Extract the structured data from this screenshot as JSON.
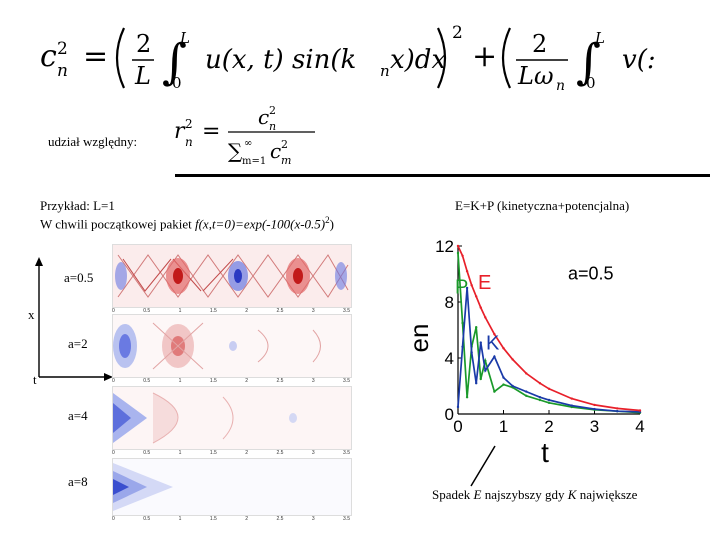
{
  "formula_top": {
    "lhs": "c",
    "lhs_sub": "n",
    "lhs_sup": "2",
    "frac1_num": "2",
    "frac1_den": "L",
    "int_lower": "0",
    "int_upper": "L",
    "integrand1": "u(x, t) sin(k",
    "integrand1_sub": "n",
    "integrand1_end": "x)dx",
    "square": "2",
    "frac2_num": "2",
    "frac2_den": "Lω",
    "frac2_den_sub": "n",
    "integrand2": "v(:"
  },
  "relative_share": {
    "label": "udział względny:",
    "lhs": "r",
    "lhs_sub": "n",
    "lhs_sup": "2",
    "num": "c",
    "num_sub": "n",
    "num_sup": "2",
    "den_sum": "∑",
    "den_sum_upper": "∞",
    "den_sum_lower": "m=1",
    "den": "c",
    "den_sub": "m",
    "den_sup": "2"
  },
  "example": {
    "line1": "Przykład: L=1",
    "line2_prefix": "W chwili początkowej pakiet ",
    "line2_formula": "f(x,t=0)=exp(-100(x-0.5)",
    "line2_sup": "2",
    "line2_end": ")"
  },
  "energy_header": "E=K+P (kinetyczna+potencjalna)",
  "axis_labels": {
    "x": "x",
    "t": "t"
  },
  "panels": [
    {
      "label": "a=0.5",
      "ticks": [
        "0",
        "0.5",
        "1",
        "1.5",
        "2",
        "2.5",
        "3",
        "3.5"
      ]
    },
    {
      "label": "a=2",
      "ticks": [
        "0",
        "0.5",
        "1",
        "1.5",
        "2",
        "2.5",
        "3",
        "3.5"
      ]
    },
    {
      "label": "a=4",
      "ticks": [
        "0",
        "0.5",
        "1",
        "1.5",
        "2",
        "2.5",
        "3",
        "3.5"
      ]
    },
    {
      "label": "a=8",
      "ticks": [
        "0",
        "0.5",
        "1",
        "1.5",
        "2",
        "2.5",
        "3",
        "3.5"
      ]
    }
  ],
  "panel_y_ticks": [
    "0.5",
    "0"
  ],
  "energy_chart": {
    "type": "line",
    "ylabel": "en",
    "xlabel": "t",
    "x_ticks": [
      "0",
      "1",
      "2",
      "3",
      "4"
    ],
    "y_ticks": [
      "0",
      "4",
      "8",
      "12"
    ],
    "xlim": [
      0,
      4
    ],
    "ylim": [
      0,
      12
    ],
    "annotation": "a=0.5",
    "series_labels": {
      "E": "E",
      "P": "P",
      "K": "K"
    },
    "colors": {
      "E": "#e8202a",
      "P": "#1a9a2a",
      "K": "#1a3aa8",
      "axis": "#000000"
    }
  },
  "chart_data": {
    "type": "line",
    "xlabel": "t",
    "ylabel": "en",
    "xlim": [
      0,
      4
    ],
    "ylim": [
      0,
      12
    ],
    "grid": false,
    "x": [
      0,
      0.1,
      0.2,
      0.3,
      0.4,
      0.5,
      0.6,
      0.8,
      1.0,
      1.2,
      1.5,
      1.8,
      2.0,
      2.5,
      3.0,
      3.5,
      4.0
    ],
    "series": [
      {
        "name": "E",
        "values": [
          12.0,
          11.3,
          10.2,
          9.2,
          8.4,
          7.6,
          6.9,
          5.7,
          4.7,
          3.9,
          2.9,
          2.2,
          1.8,
          1.1,
          0.65,
          0.4,
          0.25
        ]
      },
      {
        "name": "P",
        "values": [
          11.5,
          6.5,
          1.2,
          4.8,
          6.2,
          2.5,
          3.8,
          1.6,
          2.1,
          1.9,
          1.3,
          1.0,
          0.8,
          0.5,
          0.3,
          0.2,
          0.1
        ]
      },
      {
        "name": "K",
        "values": [
          0.5,
          4.8,
          9.0,
          4.4,
          2.2,
          5.1,
          3.1,
          4.1,
          2.6,
          2.0,
          1.6,
          1.2,
          1.0,
          0.6,
          0.35,
          0.2,
          0.15
        ]
      }
    ],
    "annotation": "a=0.5"
  },
  "note": {
    "prefix": "Spadek ",
    "E": "E",
    "middle": " najszybszy gdy ",
    "K": "K",
    "suffix": " największe"
  }
}
